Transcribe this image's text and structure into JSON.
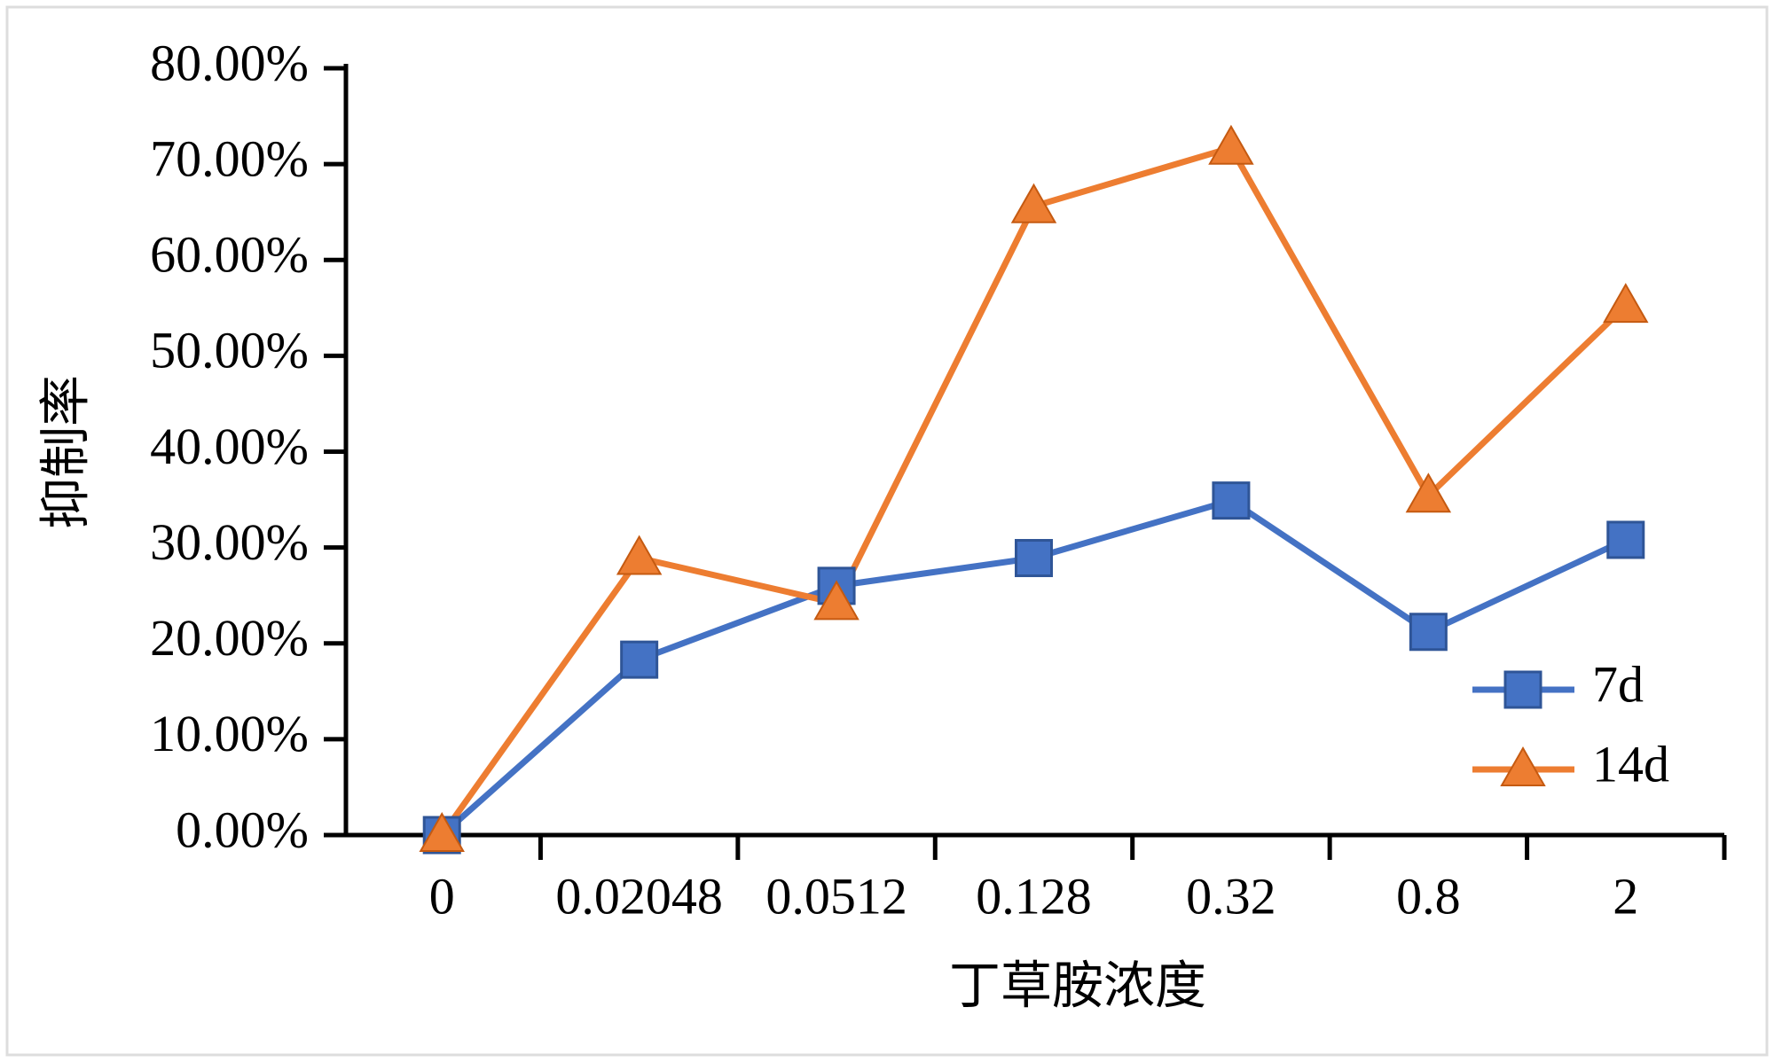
{
  "chart_data": {
    "type": "line",
    "x_label": "丁草胺浓度",
    "y_label": "抑制率",
    "categories": [
      "0",
      "0.02048",
      "0.0512",
      "0.128",
      "0.32",
      "0.8",
      "2"
    ],
    "series": [
      {
        "name": "7d",
        "color": "#4472c4",
        "marker": "square",
        "values": [
          0,
          18.3,
          26,
          28.9,
          34.9,
          21.2,
          30.8
        ]
      },
      {
        "name": "14d",
        "color": "#ed7d31",
        "marker": "triangle",
        "values": [
          0,
          28.9,
          24.2,
          65.6,
          71.7,
          35.4,
          55.2
        ]
      }
    ],
    "ylim": [
      0,
      80
    ],
    "yticks": [
      {
        "value": 0,
        "label": "0.00%"
      },
      {
        "value": 10,
        "label": "10.00%"
      },
      {
        "value": 20,
        "label": "20.00%"
      },
      {
        "value": 30,
        "label": "30.00%"
      },
      {
        "value": 40,
        "label": "40.00%"
      },
      {
        "value": 50,
        "label": "50.00%"
      },
      {
        "value": 60,
        "label": "60.00%"
      },
      {
        "value": 70,
        "label": "70.00%"
      },
      {
        "value": 80,
        "label": "80.00%"
      }
    ],
    "legend": "lower right"
  }
}
